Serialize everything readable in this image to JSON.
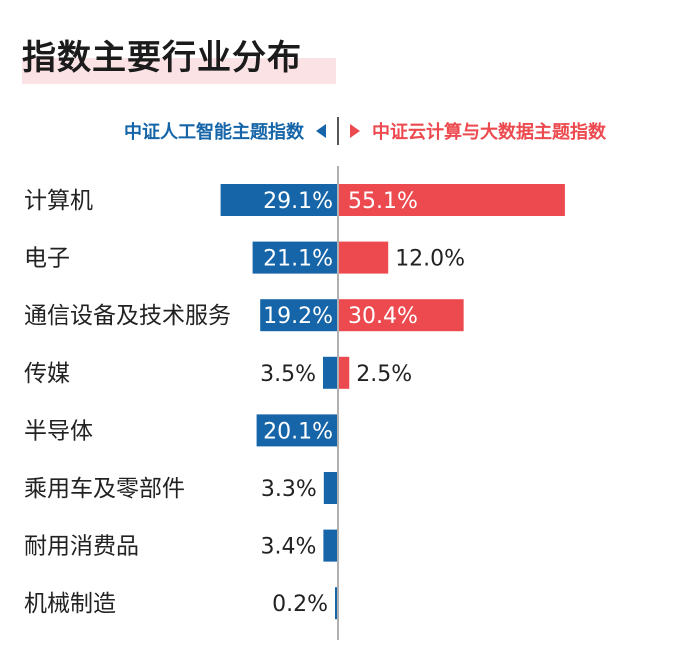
{
  "page": {
    "title": "指数主要行业分布"
  },
  "colors": {
    "left": "#1565a8",
    "right": "#ec4a4f",
    "axis": "#b0b0b0",
    "text": "#222222",
    "title_bg": "#fbe3e5"
  },
  "chart_data": {
    "type": "bar",
    "orientation": "horizontal-diverging",
    "series": [
      {
        "name": "中证人工智能主题指数",
        "side": "left",
        "color": "#1565a8",
        "values": [
          29.1,
          21.1,
          19.2,
          3.5,
          20.1,
          3.3,
          3.4,
          0.2
        ]
      },
      {
        "name": "中证云计算与大数据主题指数",
        "side": "right",
        "color": "#ec4a4f",
        "values": [
          55.1,
          12.0,
          30.4,
          2.5,
          null,
          null,
          null,
          null
        ]
      }
    ],
    "categories": [
      "计算机",
      "电子",
      "通信设备及技术服务",
      "传媒",
      "半导体",
      "乘用车及零部件",
      "耐用消费品",
      "机械制造"
    ],
    "value_labels_left": [
      "29.1%",
      "21.1%",
      "19.2%",
      "3.5%",
      "20.1%",
      "3.3%",
      "3.4%",
      "0.2%"
    ],
    "value_labels_right": [
      "55.1%",
      "12.0%",
      "30.4%",
      "2.5%",
      "",
      "",
      "",
      ""
    ],
    "legend": {
      "left": "中证人工智能主题指数",
      "right": "中证云计算与大数据主题指数",
      "placement": "top-center"
    }
  }
}
